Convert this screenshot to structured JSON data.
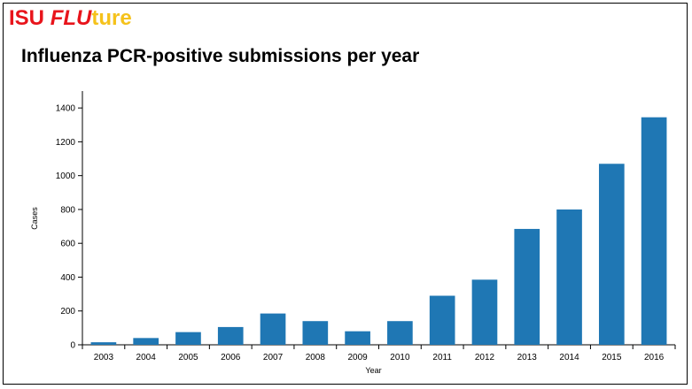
{
  "logo": {
    "part1": "ISU ",
    "part2": "FLU",
    "part3": "ture"
  },
  "colors": {
    "bar": "#1f77b4",
    "logo_red": "#e8141b",
    "logo_yellow": "#f5c21b"
  },
  "chart_data": {
    "type": "bar",
    "title": "Influenza PCR-positive submissions per year",
    "xlabel": "Year",
    "ylabel": "Cases",
    "categories": [
      "2003",
      "2004",
      "2005",
      "2006",
      "2007",
      "2008",
      "2009",
      "2010",
      "2011",
      "2012",
      "2013",
      "2014",
      "2015",
      "2016"
    ],
    "values": [
      15,
      40,
      75,
      105,
      185,
      140,
      80,
      140,
      290,
      385,
      685,
      800,
      1070,
      1345
    ],
    "ylim": [
      0,
      1500
    ],
    "yticks": [
      0,
      200,
      400,
      600,
      800,
      1000,
      1200,
      1400
    ],
    "grid": false,
    "legend": "none"
  }
}
